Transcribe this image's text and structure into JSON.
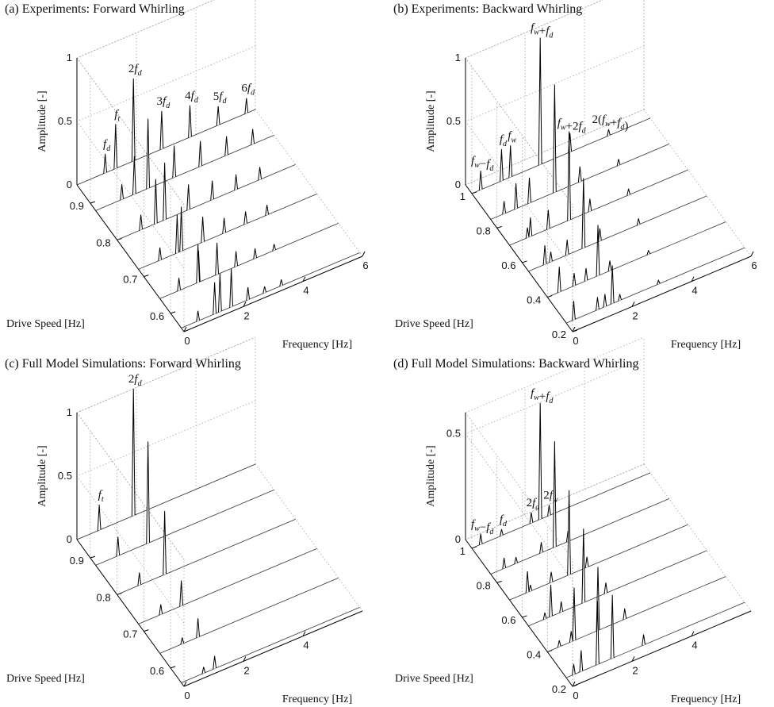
{
  "chart_data": [
    {
      "type": "waterfall",
      "title": "(a) Experiments: Forward Whirling",
      "x_label": "Frequency [Hz]",
      "y_label": "Drive Speed [Hz]",
      "z_label": "Amplitude [-]",
      "color": "#000000",
      "xlim": [
        0,
        6
      ],
      "xticks": [
        0,
        2,
        4,
        6
      ],
      "ylim": [
        0.55,
        0.95
      ],
      "yticks": [
        0.6,
        0.7,
        0.8,
        0.9
      ],
      "zlim": [
        0,
        1
      ],
      "zticks": [
        0,
        0.5,
        1
      ],
      "y": [
        0.56,
        0.64,
        0.72,
        0.8,
        0.88,
        0.95
      ],
      "series": [
        {
          "name": "fd",
          "x": [
            0.56,
            0.64,
            0.72,
            0.8,
            0.88,
            0.95
          ],
          "values": [
            0.08,
            0.1,
            0.1,
            0.12,
            0.12,
            0.15
          ]
        },
        {
          "name": "ft",
          "x": [
            1.3,
            1.3,
            1.3,
            1.3,
            1.3,
            1.3
          ],
          "values": [
            0.3,
            0.25,
            0.3,
            0.35,
            0.3,
            0.35
          ]
        },
        {
          "name": "2fd",
          "x": [
            1.12,
            1.28,
            1.44,
            1.6,
            1.76,
            1.9
          ],
          "values": [
            0.25,
            0.3,
            0.35,
            0.45,
            0.55,
            0.65
          ]
        },
        {
          "name": "3fd",
          "x": [
            1.68,
            1.92,
            2.16,
            2.4,
            2.64,
            2.85
          ],
          "values": [
            0.3,
            0.25,
            0.2,
            0.2,
            0.25,
            0.3
          ]
        },
        {
          "name": "4fd",
          "x": [
            2.24,
            2.56,
            2.88,
            3.2,
            3.52,
            3.8
          ],
          "values": [
            0.1,
            0.12,
            0.12,
            0.15,
            0.2,
            0.25
          ]
        },
        {
          "name": "5fd",
          "x": [
            2.8,
            3.2,
            3.6,
            4.0,
            4.4,
            4.75
          ],
          "values": [
            0.05,
            0.08,
            0.1,
            0.12,
            0.15,
            0.15
          ]
        },
        {
          "name": "6fd",
          "x": [
            3.36,
            3.84,
            4.32,
            4.8,
            5.28,
            5.7
          ],
          "values": [
            0.05,
            0.05,
            0.08,
            0.1,
            0.12,
            0.12
          ]
        }
      ]
    },
    {
      "type": "waterfall",
      "title": "(b) Experiments: Backward Whirling",
      "x_label": "Frequency [Hz]",
      "y_label": "Drive Speed [Hz]",
      "z_label": "Amplitude [-]",
      "color": "#000000",
      "xlim": [
        0,
        6
      ],
      "xticks": [
        0,
        2,
        4,
        6
      ],
      "ylim": [
        0.2,
        1.05
      ],
      "yticks": [
        0.2,
        0.4,
        0.6,
        0.8,
        1
      ],
      "zlim": [
        0,
        1
      ],
      "zticks": [
        0,
        0.5,
        1
      ],
      "y": [
        0.25,
        0.4,
        0.55,
        0.7,
        0.85,
        1.0
      ],
      "series": [
        {
          "name": "fd",
          "x": [
            0.25,
            0.4,
            0.55,
            0.7,
            0.85,
            1.0
          ],
          "values": [
            0.15,
            0.2,
            0.15,
            0.15,
            0.2,
            0.25
          ]
        },
        {
          "name": "fw−fd",
          "x": [
            1.05,
            0.9,
            0.75,
            0.6,
            0.45,
            0.3
          ],
          "values": [
            0.1,
            0.1,
            0.08,
            0.08,
            0.1,
            0.15
          ]
        },
        {
          "name": "fw",
          "x": [
            1.3,
            1.3,
            1.3,
            1.3,
            1.3,
            1.3
          ],
          "values": [
            0.1,
            0.1,
            0.12,
            0.15,
            0.2,
            0.25
          ]
        },
        {
          "name": "fw+fd",
          "x": [
            1.55,
            1.7,
            1.85,
            2.0,
            2.15,
            2.3
          ],
          "values": [
            0.3,
            0.4,
            0.55,
            0.7,
            0.85,
            1.0
          ]
        },
        {
          "name": "fw+2fd",
          "x": [
            1.8,
            2.1,
            2.4,
            2.7,
            3.0,
            3.3
          ],
          "values": [
            0.05,
            0.08,
            0.1,
            0.1,
            0.12,
            0.15
          ]
        },
        {
          "name": "2(fw+fd)",
          "x": [
            3.1,
            3.4,
            3.7,
            4.0,
            4.3,
            4.6
          ],
          "values": [
            0.03,
            0.03,
            0.05,
            0.05,
            0.05,
            0.05
          ]
        }
      ]
    },
    {
      "type": "waterfall",
      "title": "(c) Full Model Simulations: Forward Whirling",
      "x_label": "Frequency [Hz]",
      "y_label": "Drive Speed [Hz]",
      "z_label": "Amplitude [-]",
      "color": "#000000",
      "xlim": [
        0,
        6
      ],
      "xticks": [
        0,
        2,
        4
      ],
      "ylim": [
        0.55,
        0.95
      ],
      "yticks": [
        0.6,
        0.7,
        0.8,
        0.9
      ],
      "zlim": [
        0,
        1
      ],
      "zticks": [
        0,
        0.5,
        1
      ],
      "y": [
        0.56,
        0.64,
        0.72,
        0.8,
        0.88,
        0.95
      ],
      "series": [
        {
          "name": "ft",
          "x": [
            0.75,
            0.75,
            0.75,
            0.75,
            0.75,
            0.75
          ],
          "values": [
            0.05,
            0.05,
            0.08,
            0.1,
            0.15,
            0.2
          ]
        },
        {
          "name": "2fd",
          "x": [
            1.12,
            1.28,
            1.44,
            1.6,
            1.76,
            1.9
          ],
          "values": [
            0.1,
            0.15,
            0.2,
            0.5,
            0.8,
            1.0
          ]
        }
      ]
    },
    {
      "type": "waterfall",
      "title": "(d) Full Model Simulations: Backward Whirling",
      "x_label": "Frequency [Hz]",
      "y_label": "Drive Speed [Hz]",
      "z_label": "Amplitude [-]",
      "color": "#000000",
      "xlim": [
        0,
        6
      ],
      "xticks": [
        0,
        2,
        4
      ],
      "ylim": [
        0.2,
        1.05
      ],
      "yticks": [
        0.2,
        0.4,
        0.6,
        0.8,
        1
      ],
      "zlim": [
        0,
        0.6
      ],
      "zticks": [
        0,
        0.5
      ],
      "y": [
        0.25,
        0.4,
        0.55,
        0.7,
        0.85,
        1.0
      ],
      "series": [
        {
          "name": "fd",
          "x": [
            0.25,
            0.4,
            0.55,
            0.7,
            0.85,
            1.0
          ],
          "values": [
            0.05,
            0.03,
            0.03,
            0.03,
            0.03,
            0.03
          ]
        },
        {
          "name": "2fd",
          "x": [
            0.5,
            0.8,
            1.1,
            1.4,
            1.7,
            2.0
          ],
          "values": [
            0.1,
            0.05,
            0.05,
            0.05,
            0.05,
            0.05
          ]
        },
        {
          "name": "fw−fd",
          "x": [
            1.05,
            0.9,
            0.75,
            0.6,
            0.45,
            0.3
          ],
          "values": [
            0.3,
            0.25,
            0.15,
            0.1,
            0.05,
            0.05
          ]
        },
        {
          "name": "fw+fd",
          "x": [
            1.55,
            1.7,
            1.85,
            2.0,
            2.15,
            2.3
          ],
          "values": [
            0.3,
            0.3,
            0.35,
            0.4,
            0.5,
            0.55
          ]
        },
        {
          "name": "2fw",
          "x": [
            2.6,
            2.6,
            2.6,
            2.6,
            2.6,
            2.6
          ],
          "values": [
            0.05,
            0.05,
            0.05,
            0.05,
            0.05,
            0.05
          ]
        }
      ]
    }
  ]
}
